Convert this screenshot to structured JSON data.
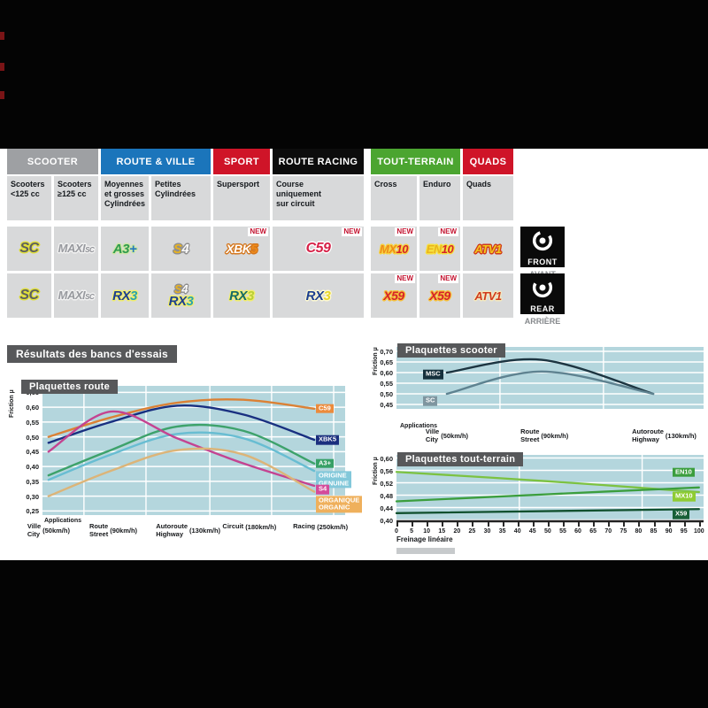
{
  "results_title": "Résultats des bancs d'essais",
  "table": {
    "new_badge": "NEW",
    "groups": [
      {
        "id": "scooter",
        "label": "SCOOTER",
        "bg": "#9ea0a3",
        "cols": [
          0,
          1
        ]
      },
      {
        "id": "route-ville",
        "label": "ROUTE & VILLE",
        "bg": "#1b75bb",
        "cols": [
          2,
          3
        ]
      },
      {
        "id": "sport",
        "label": "SPORT",
        "bg": "#cf1428",
        "cols": [
          4,
          4
        ]
      },
      {
        "id": "route-racing",
        "label": "ROUTE RACING",
        "bg": "#0c0c0c",
        "cols": [
          5,
          5
        ]
      },
      {
        "id": "tout-terrain",
        "label": "TOUT-TERRAIN",
        "bg": "#4ba530",
        "cols": [
          6,
          7
        ]
      },
      {
        "id": "quads",
        "label": "QUADS",
        "bg": "#cf1428",
        "cols": [
          8,
          8
        ]
      }
    ],
    "subheaders": [
      {
        "lines": [
          "Scooters",
          "<125 cc"
        ]
      },
      {
        "lines": [
          "Scooters",
          "≥125 cc"
        ]
      },
      {
        "lines": [
          "Moyennes",
          "et grosses",
          "Cylindrées"
        ]
      },
      {
        "lines": [
          "Petites",
          "Cylindrées"
        ]
      },
      {
        "lines": [
          "Supersport"
        ]
      },
      {
        "lines": [
          "Course",
          "uniquement",
          "sur circuit"
        ]
      },
      {
        "lines": [
          "Cross"
        ]
      },
      {
        "lines": [
          "Enduro"
        ]
      },
      {
        "lines": [
          "Quads"
        ]
      }
    ],
    "rows": [
      {
        "id": "front",
        "cells": [
          {
            "products": [
              "sc"
            ]
          },
          {
            "products": [
              "maxisc"
            ]
          },
          {
            "products": [
              "a3plus"
            ]
          },
          {
            "products": [
              "s4"
            ]
          },
          {
            "products": [
              "xbk5"
            ],
            "new": true
          },
          {
            "products": [
              "c59"
            ],
            "new": true
          },
          {
            "products": [
              "mx10"
            ],
            "new": true
          },
          {
            "products": [
              "en10"
            ],
            "new": true
          },
          {
            "products": [
              "atv1_front"
            ]
          }
        ]
      },
      {
        "id": "rear",
        "cells": [
          {
            "products": [
              "sc"
            ]
          },
          {
            "products": [
              "maxisc"
            ]
          },
          {
            "products": [
              "rx3"
            ]
          },
          {
            "products": [
              "s4_small",
              "rx3"
            ]
          },
          {
            "products": [
              "rx3_teal"
            ]
          },
          {
            "products": [
              "rx3_yellow"
            ]
          },
          {
            "products": [
              "x59"
            ],
            "new": true
          },
          {
            "products": [
              "x59"
            ],
            "new": true
          },
          {
            "products": [
              "atv1_rear"
            ]
          }
        ]
      }
    ],
    "side_labels": [
      {
        "id": "front",
        "title": "FRONT",
        "subtitle": "AVANT"
      },
      {
        "id": "rear",
        "title": "REAR",
        "subtitle": "ARRIÈRE"
      }
    ]
  },
  "products": {
    "sc": {
      "parts": [
        {
          "t": "SC",
          "c": "#5d5e60"
        }
      ],
      "glow": "#e0df39",
      "size": 16
    },
    "maxisc": {
      "parts": [
        {
          "t": "MAXI",
          "c": "#97999e"
        },
        {
          "t": "SC",
          "c": "#8f9196",
          "small": true
        }
      ],
      "glow": "#f2f2f2",
      "size": 13
    },
    "a3plus": {
      "parts": [
        {
          "t": "A3",
          "c": "#2e9b4e"
        },
        {
          "t": "+",
          "c": "#2478bd"
        }
      ],
      "glow": "#cde6a4",
      "size": 15
    },
    "s4": {
      "parts": [
        {
          "t": "S",
          "c": "#eab31e"
        },
        {
          "t": "4",
          "c": "#fafafa"
        }
      ],
      "glow": "#8f8f8f",
      "size": 15
    },
    "s4_small": {
      "parts": [
        {
          "t": "S",
          "c": "#eab31e"
        },
        {
          "t": "4",
          "c": "#fafafa"
        }
      ],
      "glow": "#8f8f8f",
      "size": 13
    },
    "xbk5": {
      "parts": [
        {
          "t": "XBK",
          "c": "#ffffff"
        },
        {
          "t": "5",
          "c": "#ef8b1a"
        }
      ],
      "glow": "#d3761d",
      "size": 14
    },
    "c59": {
      "parts": [
        {
          "t": "C59",
          "c": "#d62147"
        }
      ],
      "glow": "#ffffff",
      "size": 16
    },
    "mx10": {
      "parts": [
        {
          "t": "MX",
          "c": "#ef8b1a"
        },
        {
          "t": "10",
          "c": "#d6232a"
        }
      ],
      "glow": "#f6d23e",
      "size": 13
    },
    "en10": {
      "parts": [
        {
          "t": "EN",
          "c": "#eab31e"
        },
        {
          "t": "10",
          "c": "#d6232a"
        }
      ],
      "glow": "#f6e03e",
      "size": 13
    },
    "atv1_front": {
      "parts": [
        {
          "t": "ATV1",
          "c": "#f2c91d"
        }
      ],
      "glow": "#d13a1c",
      "size": 13
    },
    "atv1_rear": {
      "parts": [
        {
          "t": "ATV1",
          "c": "#d13a1c"
        }
      ],
      "glow": "#f2e9c0",
      "size": 13
    },
    "rx3": {
      "parts": [
        {
          "t": "RX",
          "c": "#1c3f90"
        },
        {
          "t": "3",
          "c": "#2ba3ab"
        }
      ],
      "glow": "#f2ee6e",
      "size": 15
    },
    "rx3_teal": {
      "parts": [
        {
          "t": "RX",
          "c": "#156a66"
        },
        {
          "t": "3",
          "c": "#b9cf35"
        }
      ],
      "glow": "#f2ee6e",
      "size": 15
    },
    "rx3_yellow": {
      "parts": [
        {
          "t": "RX",
          "c": "#1c3f90"
        },
        {
          "t": "3",
          "c": "#e8d62a"
        }
      ],
      "glow": "#fdf9d2",
      "size": 15
    },
    "x59": {
      "parts": [
        {
          "t": "X59",
          "c": "#d6232a"
        }
      ],
      "glow": "#f6c23e",
      "size": 14
    }
  },
  "chart_data": [
    {
      "id": "route",
      "type": "line",
      "title": "Plaquettes route",
      "ylabel": "Friction µ",
      "applications_label": "Applications",
      "ylim": [
        0.25,
        0.65
      ],
      "ytick_step": 0.05,
      "grid": true,
      "legend_position": "right-of-line-end",
      "categories": [
        {
          "lines": [
            "Ville",
            "City"
          ],
          "speed": "(50km/h)"
        },
        {
          "lines": [
            "Route",
            "Street"
          ],
          "speed": "(90km/h)"
        },
        {
          "lines": [
            "Autoroute",
            "Highway"
          ],
          "speed": "(130km/h)"
        },
        {
          "lines": [
            "Circuit"
          ],
          "speed": "(180km/h)"
        },
        {
          "lines": [
            "Racing"
          ],
          "speed": "(250km/h)"
        }
      ],
      "series": [
        {
          "name": "C59",
          "label": [
            "C59"
          ],
          "color": "#db8135",
          "label_bg": "#ec8b3c",
          "values": [
            0.5,
            0.565,
            0.615,
            0.625,
            0.595
          ]
        },
        {
          "name": "XBK5",
          "label": [
            "XBK5"
          ],
          "color": "#182f80",
          "label_bg": "#1b2f7e",
          "values": [
            0.48,
            0.55,
            0.605,
            0.575,
            0.49
          ]
        },
        {
          "name": "A3+",
          "label": [
            "A3+"
          ],
          "color": "#3da26b",
          "label_bg": "#37a066",
          "values": [
            0.37,
            0.455,
            0.535,
            0.52,
            0.41
          ]
        },
        {
          "name": "ORIGINE",
          "label": [
            "ORIGINE",
            "GENUINE"
          ],
          "color": "#68bdd2",
          "label_bg": "#82c8da",
          "values": [
            0.355,
            0.44,
            0.51,
            0.495,
            0.385
          ]
        },
        {
          "name": "S4",
          "label": [
            "S4"
          ],
          "color": "#c44391",
          "label_bg": "#d44b9b",
          "values": [
            0.45,
            0.585,
            0.495,
            0.41,
            0.335
          ]
        },
        {
          "name": "ORGANIQUE",
          "label": [
            "ORGANIQUE",
            "ORGANIC"
          ],
          "color": "#dcb478",
          "label_bg": "#efb05c",
          "values": [
            0.3,
            0.385,
            0.455,
            0.44,
            0.315
          ]
        }
      ]
    },
    {
      "id": "scooter",
      "type": "line",
      "title": "Plaquettes scooter",
      "ylabel": "Friction µ",
      "applications_label": "Applications",
      "ylim": [
        0.45,
        0.7
      ],
      "ytick_step": 0.05,
      "grid": true,
      "legend_position": "left-of-line-start",
      "categories": [
        {
          "lines": [
            "Ville",
            "City"
          ],
          "speed": "(50km/h)"
        },
        {
          "lines": [
            "Route",
            "Street"
          ],
          "speed": "(90km/h)"
        },
        {
          "lines": [
            "Autoroute",
            "Highway"
          ],
          "speed": "(130km/h)"
        }
      ],
      "series": [
        {
          "name": "MSC",
          "label": [
            "MSC"
          ],
          "color": "#1c3440",
          "label_bg": "#15303c",
          "values": [
            0.6,
            0.66,
            0.5
          ]
        },
        {
          "name": "SC",
          "label": [
            "SC"
          ],
          "color": "#5e8290",
          "label_bg": "#7e959f",
          "values": [
            0.5,
            0.605,
            0.5
          ]
        }
      ]
    },
    {
      "id": "tout-terrain",
      "type": "line",
      "title": "Plaquettes tout-terrain",
      "ylabel": "Friction µ",
      "xlabel": "Freinage linéaire",
      "ylim": [
        0.4,
        0.6
      ],
      "ytick_step": 0.04,
      "xlim": [
        0,
        100
      ],
      "xtick_step": 5,
      "grid": true,
      "legend_position": "right-of-line-end",
      "series": [
        {
          "name": "MX10",
          "label": [
            "MX10"
          ],
          "color": "#7cc241",
          "label_bg": "#8fcc33",
          "x": [
            0,
            50,
            100
          ],
          "values": [
            0.555,
            0.525,
            0.49
          ]
        },
        {
          "name": "EN10",
          "label": [
            "EN10"
          ],
          "color": "#3b9e3d",
          "label_bg": "#3b9e3d",
          "x": [
            0,
            50,
            100
          ],
          "values": [
            0.46,
            0.483,
            0.505
          ]
        },
        {
          "name": "X59",
          "label": [
            "X59"
          ],
          "color": "#11502e",
          "label_bg": "#175f37",
          "x": [
            0,
            100
          ],
          "values": [
            0.422,
            0.435
          ]
        }
      ]
    }
  ]
}
